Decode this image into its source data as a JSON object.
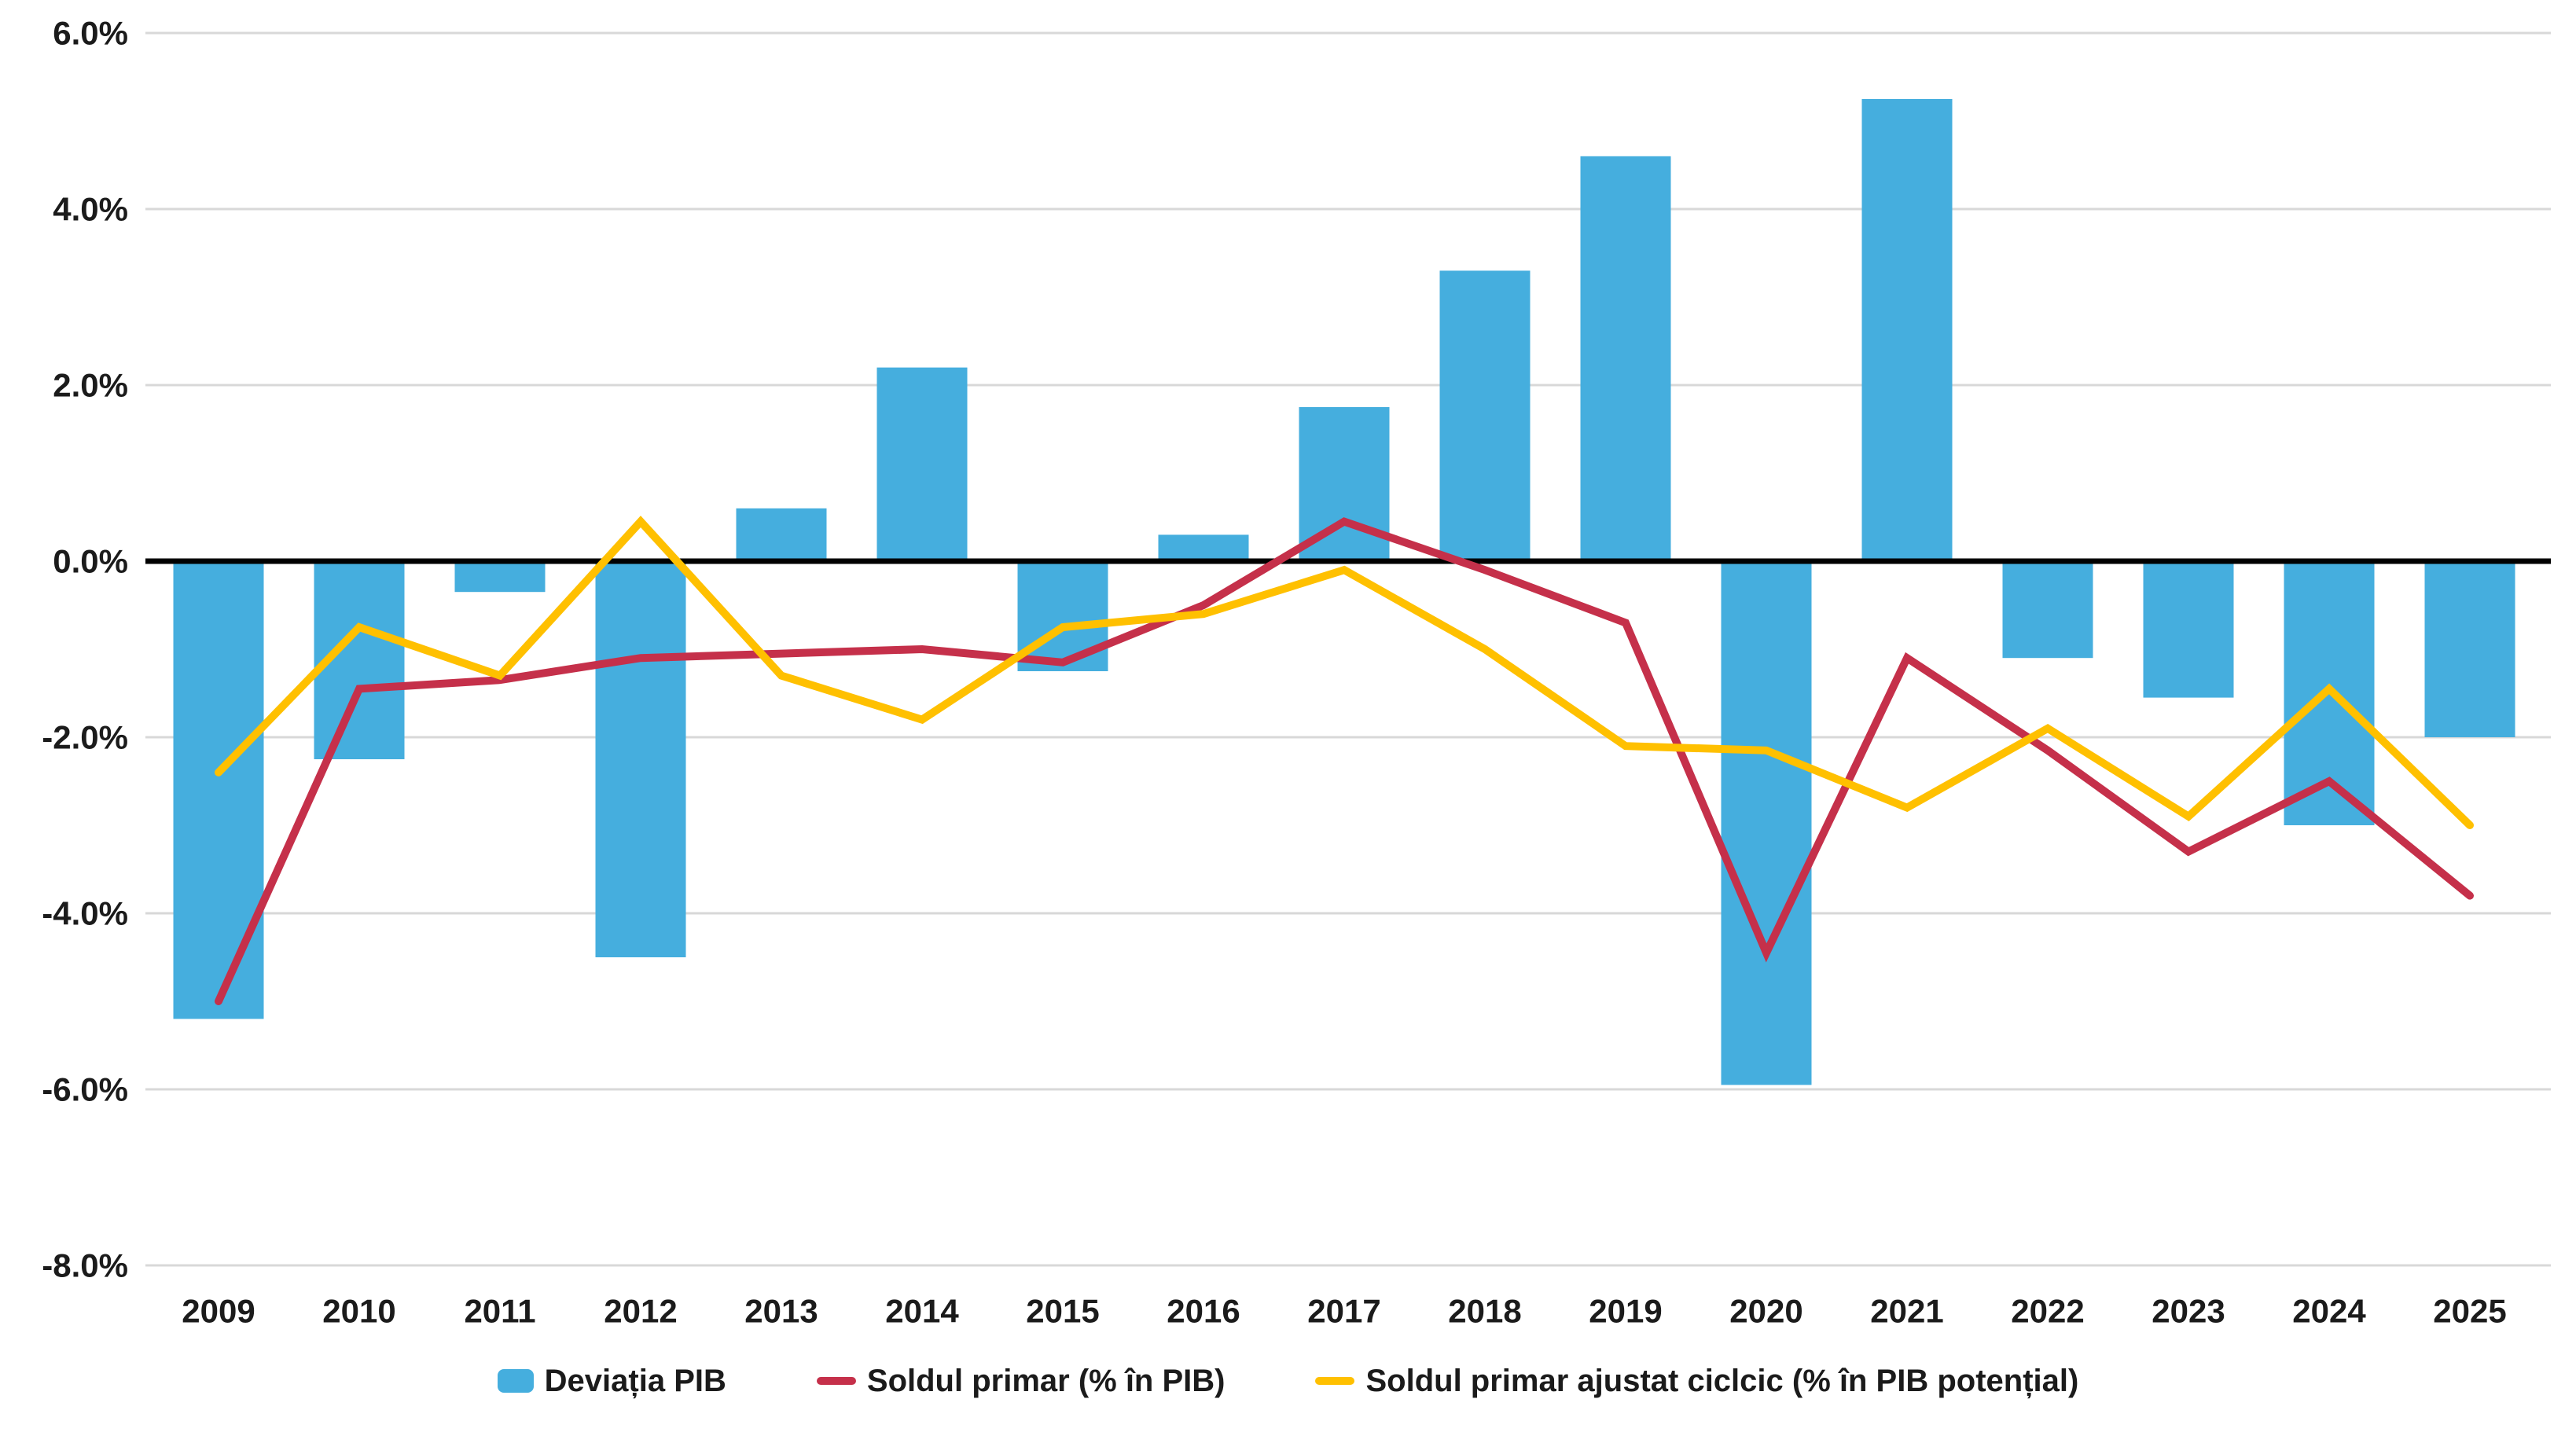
{
  "chart_data": {
    "type": "bar",
    "subtype": "combo-bar-and-lines",
    "title": "",
    "xlabel": "",
    "ylabel": "",
    "categories": [
      "2009",
      "2010",
      "2011",
      "2012",
      "2013",
      "2014",
      "2015",
      "2016",
      "2017",
      "2018",
      "2019",
      "2020",
      "2021",
      "2022",
      "2023",
      "2024",
      "2025"
    ],
    "series": [
      {
        "name": "Deviația PIB",
        "type": "bar",
        "color": "#45AEDE",
        "values": [
          -5.2,
          -2.25,
          -0.35,
          -4.5,
          0.6,
          2.2,
          -1.25,
          0.3,
          1.75,
          3.3,
          4.6,
          -5.95,
          5.25,
          -1.1,
          -1.55,
          -3.0,
          -2.0
        ]
      },
      {
        "name": "Soldul primar (% în PIB)",
        "type": "line",
        "color": "#C5304A",
        "values": [
          -5.0,
          -1.45,
          -1.35,
          -1.1,
          -1.05,
          -1.0,
          -1.15,
          -0.5,
          0.45,
          -0.1,
          -0.7,
          -4.45,
          -1.1,
          -2.15,
          -3.3,
          -2.5,
          -3.8
        ]
      },
      {
        "name": "Soldul primar ajustat ciclcic (% în PIB potențial)",
        "type": "line",
        "color": "#FFC000",
        "values": [
          -2.4,
          -0.75,
          -1.3,
          0.45,
          -1.3,
          -1.8,
          -0.75,
          -0.6,
          -0.1,
          -1.0,
          -2.1,
          -2.15,
          -2.8,
          -1.9,
          -2.9,
          -1.45,
          -3.0
        ]
      }
    ],
    "ylim": [
      -8,
      6
    ],
    "ytick_step": 2,
    "ytick_labels": [
      "6.0%",
      "4.0%",
      "2.0%",
      "0.0%",
      "-2.0%",
      "-4.0%",
      "-6.0%",
      "-8.0%"
    ],
    "grid": "horizontal-only",
    "grid_color": "#D8D8D8",
    "zero_line_color": "#000000",
    "axis_text_color": "#1b1b1b",
    "legend_position": "bottom"
  }
}
